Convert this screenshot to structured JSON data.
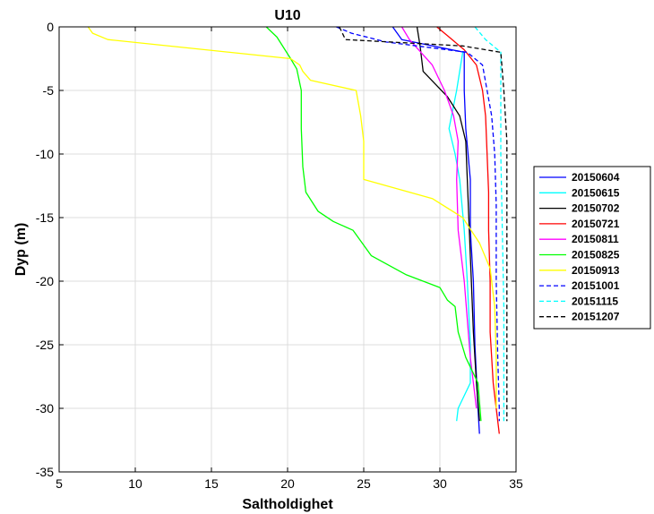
{
  "chart_data": {
    "type": "line",
    "title": "U10",
    "xlabel": "Saltholdighet",
    "ylabel": "Dyp (m)",
    "xlim": [
      5,
      35
    ],
    "ylim": [
      -35,
      0
    ],
    "xticks": [
      5,
      10,
      15,
      20,
      25,
      30,
      35
    ],
    "yticks": [
      0,
      -5,
      -10,
      -15,
      -20,
      -25,
      -30,
      -35
    ],
    "grid": true,
    "legend_position": "outside-right",
    "series": [
      {
        "name": "20150604",
        "color": "#0000ff",
        "dash": "solid",
        "points": [
          [
            26.9,
            0
          ],
          [
            27.5,
            -1
          ],
          [
            31.6,
            -2
          ],
          [
            31.6,
            -5
          ],
          [
            31.7,
            -8
          ],
          [
            32.0,
            -12
          ],
          [
            32.0,
            -16
          ],
          [
            32.2,
            -20
          ],
          [
            32.3,
            -25
          ],
          [
            32.5,
            -30
          ],
          [
            32.6,
            -32
          ]
        ]
      },
      {
        "name": "20150615",
        "color": "#00ffff",
        "dash": "solid",
        "points": [
          [
            31.5,
            -2
          ],
          [
            31.1,
            -5
          ],
          [
            30.6,
            -8
          ],
          [
            31.0,
            -10
          ],
          [
            31.3,
            -12
          ],
          [
            31.6,
            -16
          ],
          [
            31.8,
            -20
          ],
          [
            32.0,
            -25
          ],
          [
            32.0,
            -28
          ],
          [
            31.2,
            -30
          ],
          [
            31.1,
            -31
          ]
        ]
      },
      {
        "name": "20150702",
        "color": "#000000",
        "dash": "solid",
        "points": [
          [
            28.5,
            0
          ],
          [
            28.7,
            -1.5
          ],
          [
            28.9,
            -3.5
          ],
          [
            30.5,
            -5.5
          ],
          [
            31.3,
            -7
          ],
          [
            31.7,
            -9
          ],
          [
            31.8,
            -12
          ],
          [
            32.0,
            -18
          ],
          [
            32.2,
            -24
          ],
          [
            32.4,
            -28
          ],
          [
            32.6,
            -31
          ]
        ]
      },
      {
        "name": "20150721",
        "color": "#ff0000",
        "dash": "solid",
        "points": [
          [
            29.8,
            0
          ],
          [
            30.5,
            -0.7
          ],
          [
            31.6,
            -1.8
          ],
          [
            32.4,
            -3
          ],
          [
            32.8,
            -5
          ],
          [
            33.0,
            -7
          ],
          [
            33.1,
            -10
          ],
          [
            33.2,
            -13
          ],
          [
            33.2,
            -16
          ],
          [
            33.3,
            -20
          ],
          [
            33.3,
            -24
          ],
          [
            33.5,
            -28
          ],
          [
            33.7,
            -30
          ],
          [
            33.9,
            -32
          ]
        ]
      },
      {
        "name": "20150811",
        "color": "#ff00ff",
        "dash": "solid",
        "points": [
          [
            27.5,
            0
          ],
          [
            28.0,
            -1
          ],
          [
            29.5,
            -3
          ],
          [
            30.3,
            -5
          ],
          [
            30.9,
            -7
          ],
          [
            31.2,
            -9
          ],
          [
            31.1,
            -12
          ],
          [
            31.2,
            -16
          ],
          [
            31.6,
            -20
          ],
          [
            31.8,
            -23
          ],
          [
            32.0,
            -26
          ],
          [
            32.3,
            -29
          ],
          [
            32.4,
            -30
          ]
        ]
      },
      {
        "name": "20150825",
        "color": "#00ff00",
        "dash": "solid",
        "points": [
          [
            18.6,
            0
          ],
          [
            19.3,
            -0.8
          ],
          [
            20.2,
            -2.5
          ],
          [
            20.6,
            -3.3
          ],
          [
            20.9,
            -5
          ],
          [
            20.9,
            -8
          ],
          [
            21.0,
            -11
          ],
          [
            21.2,
            -13
          ],
          [
            22.0,
            -14.5
          ],
          [
            23.0,
            -15.3
          ],
          [
            24.3,
            -16
          ],
          [
            25.5,
            -18
          ],
          [
            27.8,
            -19.5
          ],
          [
            30.0,
            -20.5
          ],
          [
            30.5,
            -21.5
          ],
          [
            31.0,
            -22
          ],
          [
            31.2,
            -24
          ],
          [
            31.7,
            -26
          ],
          [
            32.5,
            -28
          ],
          [
            32.7,
            -31
          ]
        ]
      },
      {
        "name": "20150913",
        "color": "#ffff00",
        "dash": "solid",
        "points": [
          [
            6.9,
            0
          ],
          [
            7.2,
            -0.5
          ],
          [
            8.2,
            -1
          ],
          [
            20.2,
            -2.5
          ],
          [
            20.8,
            -3
          ],
          [
            21.0,
            -3.5
          ],
          [
            21.5,
            -4.2
          ],
          [
            24.5,
            -5
          ],
          [
            24.8,
            -7
          ],
          [
            25.0,
            -9
          ],
          [
            25.0,
            -12
          ],
          [
            29.5,
            -13.5
          ],
          [
            31.5,
            -15
          ],
          [
            32.6,
            -17
          ],
          [
            33.3,
            -19
          ],
          [
            33.6,
            -22
          ],
          [
            33.7,
            -26
          ],
          [
            33.7,
            -30
          ]
        ]
      },
      {
        "name": "20151001",
        "color": "#0000ff",
        "dash": "dashed",
        "points": [
          [
            23.2,
            0
          ],
          [
            24.2,
            -0.5
          ],
          [
            26.5,
            -1.2
          ],
          [
            31.8,
            -2
          ],
          [
            32.8,
            -3
          ],
          [
            33.1,
            -5
          ],
          [
            33.4,
            -7
          ],
          [
            33.6,
            -10
          ],
          [
            33.7,
            -14
          ],
          [
            33.7,
            -20
          ],
          [
            33.8,
            -26
          ],
          [
            33.9,
            -30
          ],
          [
            33.9,
            -31
          ]
        ]
      },
      {
        "name": "20151115",
        "color": "#00ffff",
        "dash": "dashed",
        "points": [
          [
            32.3,
            0
          ],
          [
            33.0,
            -1
          ],
          [
            34.0,
            -2
          ],
          [
            34.0,
            -5
          ],
          [
            34.0,
            -10
          ],
          [
            34.1,
            -16
          ],
          [
            34.2,
            -22
          ],
          [
            34.2,
            -28
          ],
          [
            34.2,
            -31
          ]
        ]
      },
      {
        "name": "20151207",
        "color": "#000000",
        "dash": "dashed",
        "points": [
          [
            23.4,
            0
          ],
          [
            23.8,
            -1
          ],
          [
            31.5,
            -1.5
          ],
          [
            34.0,
            -2
          ],
          [
            34.2,
            -5
          ],
          [
            34.4,
            -9
          ],
          [
            34.4,
            -14
          ],
          [
            34.4,
            -20
          ],
          [
            34.4,
            -26
          ],
          [
            34.4,
            -31
          ]
        ]
      }
    ]
  }
}
